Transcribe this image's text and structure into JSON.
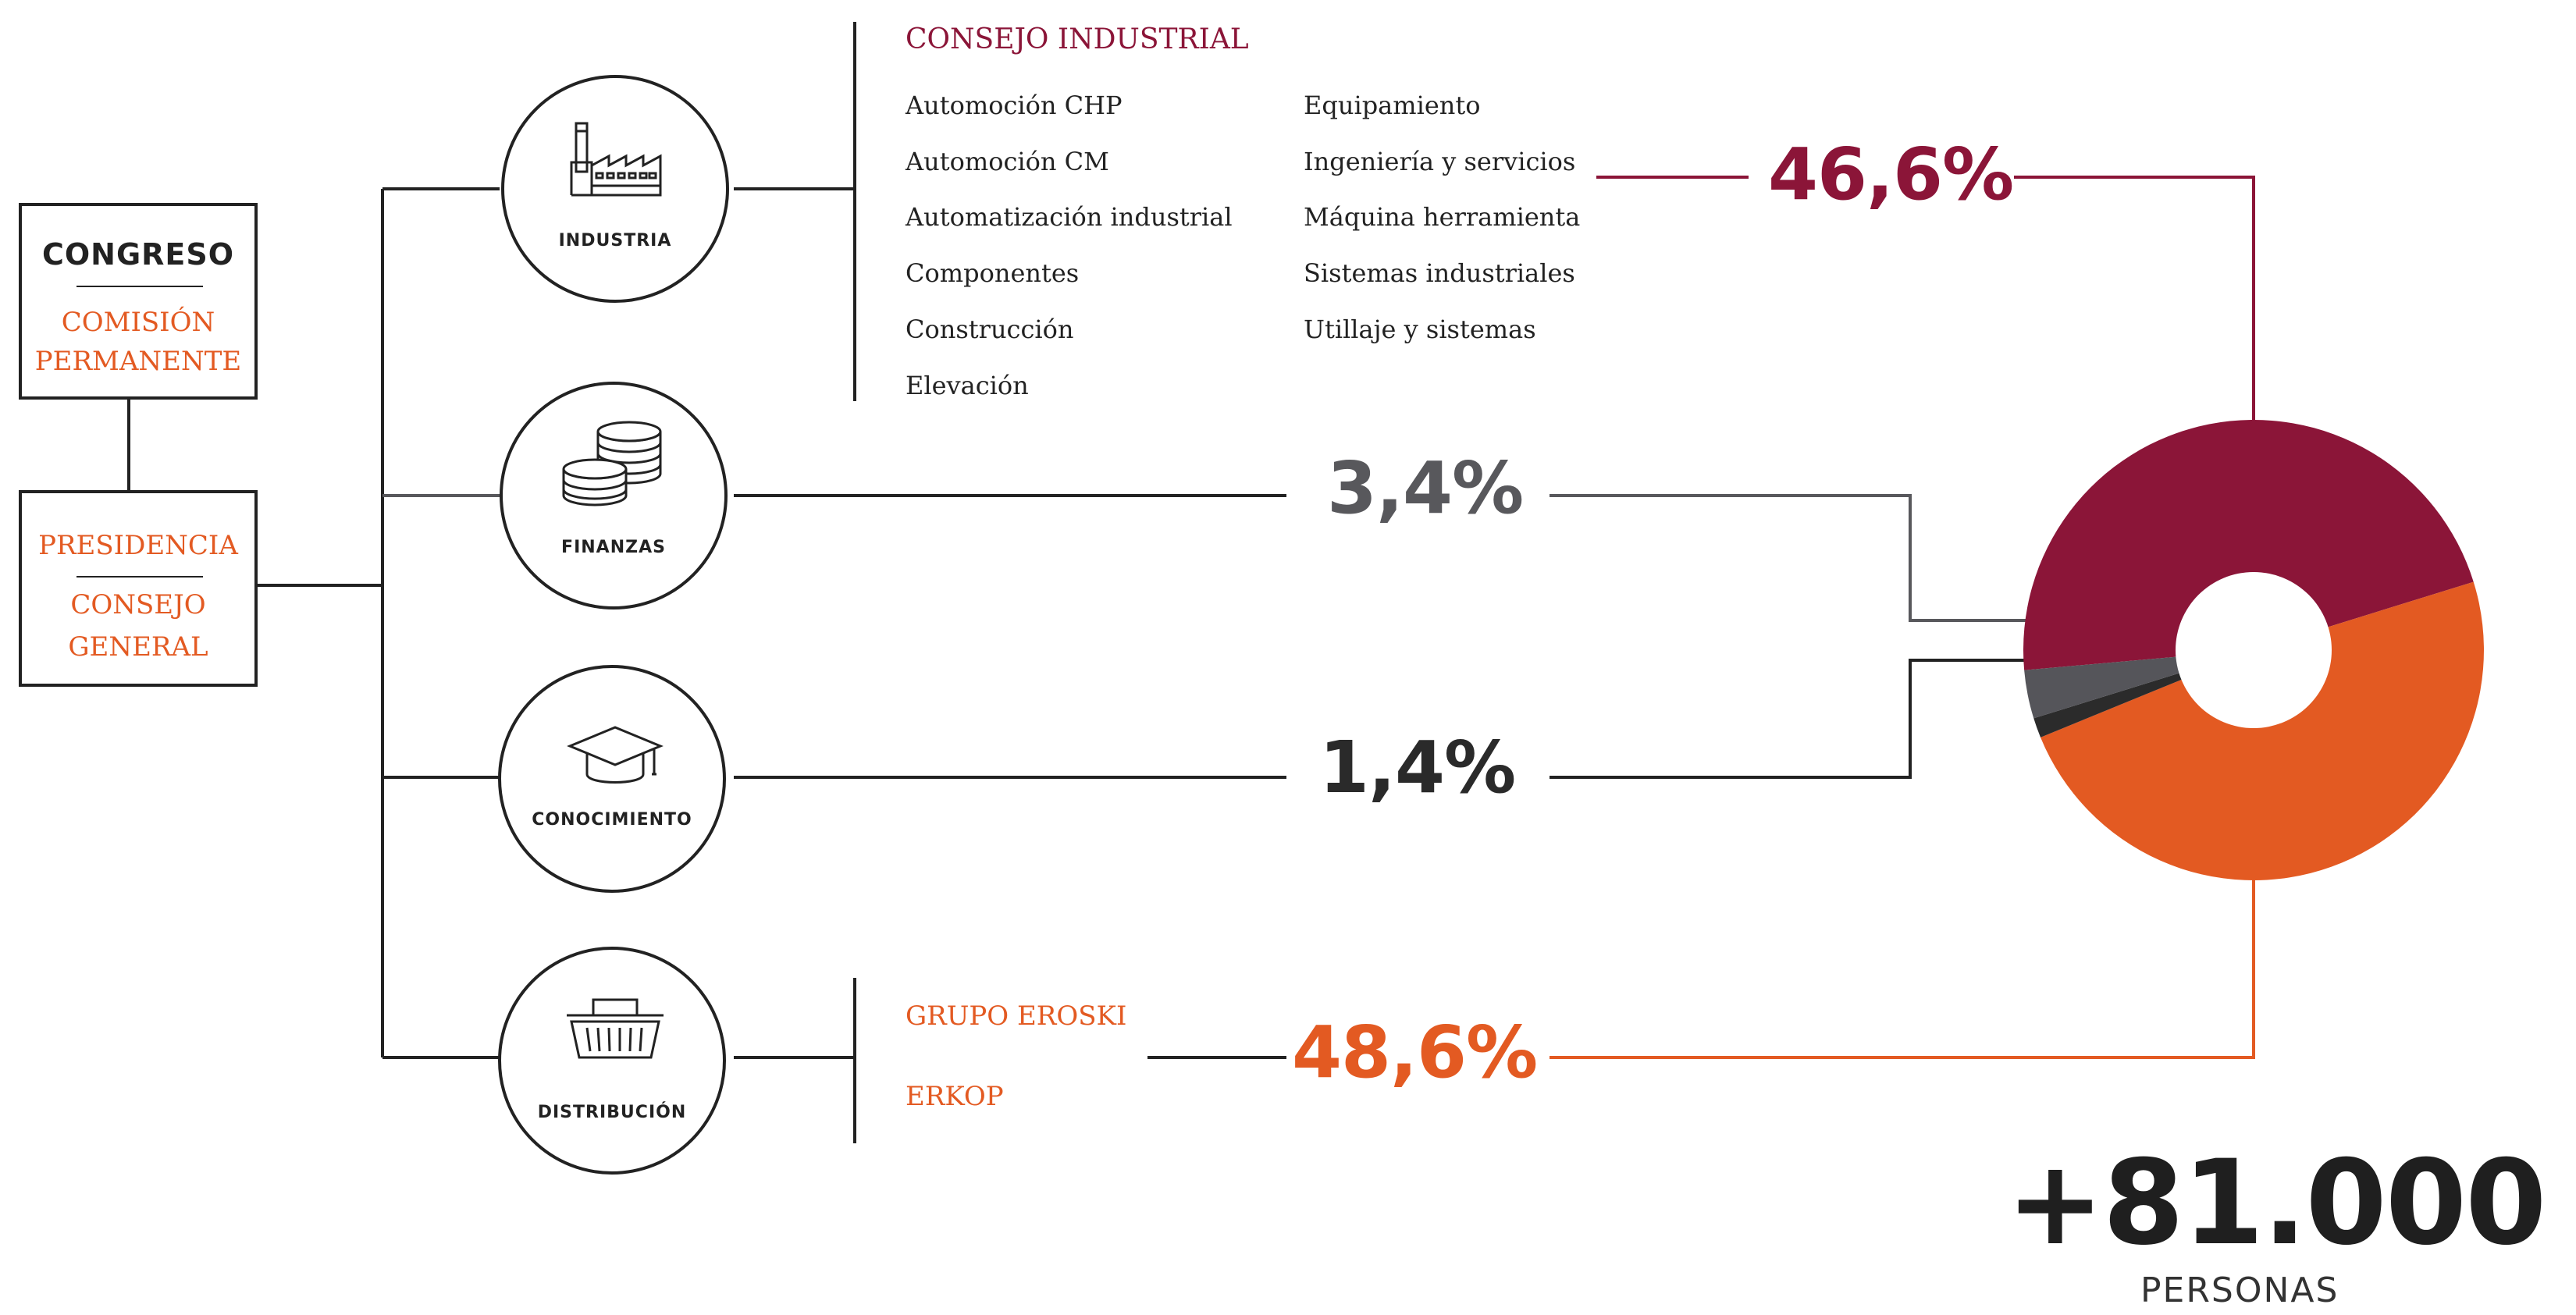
{
  "congreso": {
    "title": "CONGRESO",
    "subtitle": "COMISIÓN\nPERMANENTE"
  },
  "presidencia": {
    "title": "PRESIDENCIA",
    "subtitle": "CONSEJO\nGENERAL"
  },
  "areas": [
    {
      "label": "INDUSTRIA",
      "icon": "factory-icon"
    },
    {
      "label": "FINANZAS",
      "icon": "coins-icon"
    },
    {
      "label": "CONOCIMIENTO",
      "icon": "graduation-cap-icon"
    },
    {
      "label": "DISTRIBUCIÓN",
      "icon": "shopping-basket-icon"
    }
  ],
  "industria_list": {
    "heading": "CONSEJO INDUSTRIAL",
    "col1": [
      "Automoción CHP",
      "Automoción CM",
      "Automatización industrial",
      "Componentes",
      "Construcción",
      "Elevación"
    ],
    "col2": [
      "Equipamiento",
      "Ingeniería y servicios",
      "Máquina herramienta",
      "Sistemas industriales",
      "Utillaje y sistemas"
    ]
  },
  "distribucion_list": [
    "GRUPO EROSKI",
    "ERKOP"
  ],
  "percentages": {
    "industria": "46,6%",
    "finanzas": "3,4%",
    "conocimiento": "1,4%",
    "distribucion": "48,6%"
  },
  "donut": {
    "segments": [
      {
        "area": "industria",
        "value": 46.6,
        "color": "#8b1538"
      },
      {
        "area": "distribucion",
        "value": 48.6,
        "color": "#e35a22"
      },
      {
        "area": "conocimiento",
        "value": 1.4,
        "color": "#2b2b2b"
      },
      {
        "area": "finanzas",
        "value": 3.4,
        "color": "#55555a"
      }
    ]
  },
  "total": {
    "value": "+81.000",
    "label": "PERSONAS"
  },
  "colors": {
    "industria": "#8b1538",
    "finanzas": "#58585c",
    "conocimiento": "#2a2a2a",
    "distribucion": "#e35a22",
    "line": "#222222"
  }
}
